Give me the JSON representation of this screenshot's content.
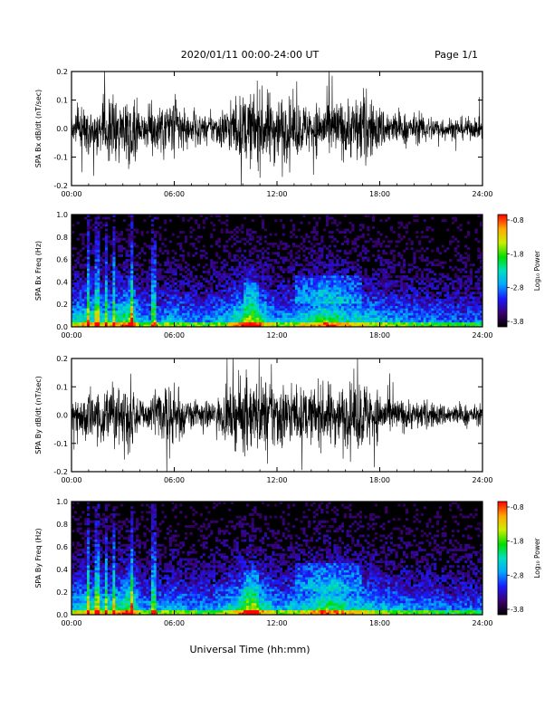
{
  "header": {
    "title": "2020/01/11  00:00-24:00 UT",
    "page": "Page 1/1"
  },
  "footer": {
    "xlabel": "Universal Time (hh:mm)"
  },
  "colorbar": {
    "label": "Log₁₀ Power",
    "ticks": [
      "-0.8",
      "-1.8",
      "-2.8",
      "-3.8"
    ]
  },
  "chart_data": [
    {
      "type": "line",
      "ylabel": "SPA Bx dB/dt (nT/sec)",
      "xlim": [
        "00:00",
        "24:00"
      ],
      "x_ticks": [
        "00:00",
        "06:00",
        "12:00",
        "18:00",
        "24:00"
      ],
      "ylim": [
        -0.2,
        0.2
      ],
      "y_ticks": [
        "0.2",
        "0.1",
        "0.0",
        "-0.1",
        "-0.2"
      ],
      "amplitude_envelope_x_hours": [
        0,
        1,
        2,
        3,
        3.5,
        4,
        5,
        6,
        7,
        8,
        9,
        10,
        11,
        12,
        13,
        14,
        15,
        16,
        17,
        18,
        19,
        20,
        21,
        22,
        23,
        24
      ],
      "amplitude_envelope_y": [
        0.08,
        0.12,
        0.15,
        0.2,
        0.2,
        0.08,
        0.14,
        0.18,
        0.08,
        0.07,
        0.12,
        0.18,
        0.2,
        0.19,
        0.15,
        0.13,
        0.16,
        0.15,
        0.2,
        0.12,
        0.09,
        0.08,
        0.07,
        0.06,
        0.06,
        0.05
      ]
    },
    {
      "type": "heatmap",
      "ylabel": "SPA Bx Freq (Hz)",
      "xlim": [
        "00:00",
        "24:00"
      ],
      "x_ticks": [
        "00:00",
        "06:00",
        "12:00",
        "18:00",
        "24:00"
      ],
      "ylim": [
        0.0,
        1.0
      ],
      "y_ticks": [
        "1.0",
        "0.8",
        "0.6",
        "0.4",
        "0.2",
        "0.0"
      ],
      "zlim": [
        -3.8,
        -0.8
      ],
      "zlabel": "Log₁₀ Power"
    },
    {
      "type": "line",
      "ylabel": "SPA By dB/dt (nT/sec)",
      "xlim": [
        "00:00",
        "24:00"
      ],
      "x_ticks": [
        "00:00",
        "06:00",
        "12:00",
        "18:00",
        "24:00"
      ],
      "ylim": [
        -0.2,
        0.2
      ],
      "y_ticks": [
        "0.2",
        "0.1",
        "0.0",
        "-0.1",
        "-0.2"
      ],
      "amplitude_envelope_x_hours": [
        0,
        1,
        2,
        3,
        3.5,
        4,
        5,
        6,
        7,
        8,
        9,
        10,
        11,
        12,
        13,
        14,
        15,
        16,
        17,
        18,
        19,
        20,
        21,
        22,
        23,
        24
      ],
      "amplitude_envelope_y": [
        0.09,
        0.14,
        0.17,
        0.2,
        0.2,
        0.09,
        0.14,
        0.18,
        0.08,
        0.07,
        0.12,
        0.2,
        0.2,
        0.2,
        0.15,
        0.14,
        0.17,
        0.16,
        0.2,
        0.13,
        0.09,
        0.08,
        0.07,
        0.06,
        0.06,
        0.05
      ]
    },
    {
      "type": "heatmap",
      "ylabel": "SPA By Freq (Hz)",
      "xlim": [
        "00:00",
        "24:00"
      ],
      "x_ticks": [
        "00:00",
        "06:00",
        "12:00",
        "18:00",
        "24:00"
      ],
      "ylim": [
        0.0,
        1.0
      ],
      "y_ticks": [
        "1.0",
        "0.8",
        "0.6",
        "0.4",
        "0.2",
        "0.0"
      ],
      "zlim": [
        -3.8,
        -0.8
      ],
      "zlabel": "Log₁₀ Power"
    }
  ]
}
